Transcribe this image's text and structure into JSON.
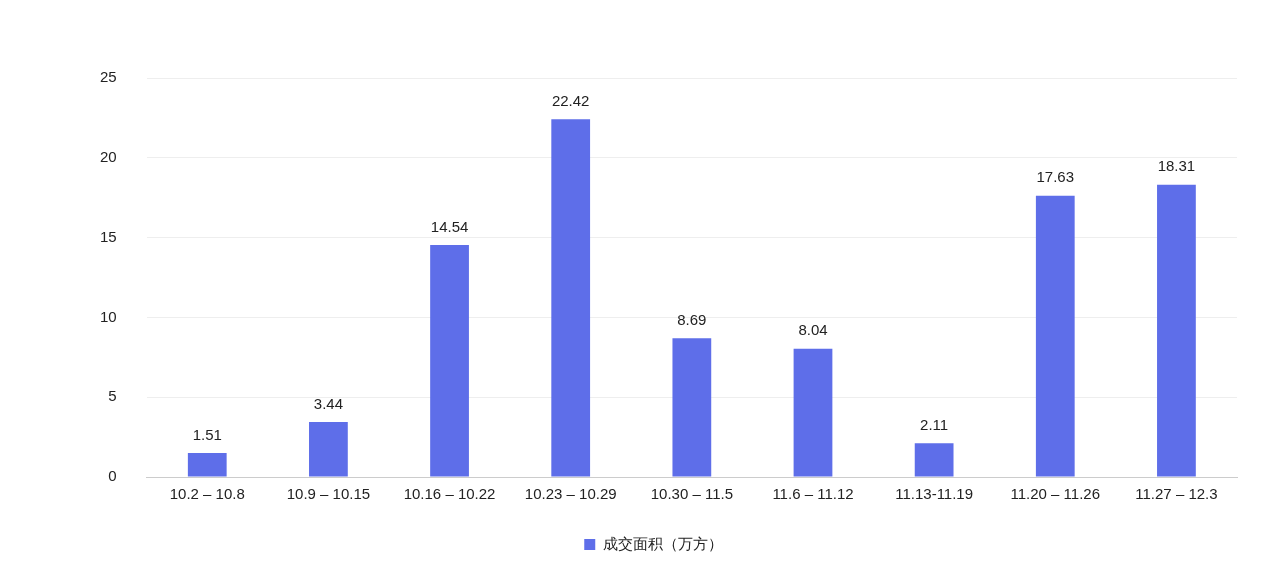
{
  "chart_data": {
    "type": "bar",
    "categories": [
      "10.2 – 10.8",
      "10.9 – 10.15",
      "10.16 – 10.22",
      "10.23 – 10.29",
      "10.30 – 11.5",
      "11.6 – 11.12",
      "11.13-11.19",
      "11.20 – 11.26",
      "11.27 – 12.3"
    ],
    "series": [
      {
        "name": "成交面积（万方）",
        "color": "#5e6ee9",
        "values": [
          1.51,
          3.44,
          14.54,
          22.42,
          8.69,
          8.04,
          2.11,
          17.63,
          18.31
        ]
      }
    ],
    "ylim": [
      0,
      25
    ],
    "yticks": [
      0,
      5,
      10,
      15,
      20,
      25
    ],
    "grid": "y",
    "legend": "bottom",
    "data_labels": true
  }
}
